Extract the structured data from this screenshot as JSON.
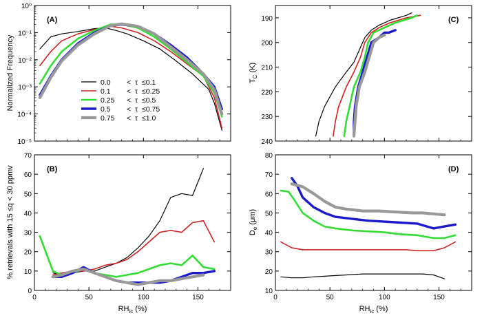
{
  "colors": {
    "series": [
      "#000000",
      "#cc2222",
      "#33dd33",
      "#1a1acc",
      "#999999"
    ],
    "frame": "#000000"
  },
  "legend": {
    "rows": [
      {
        "lo": "0.0",
        "op1": "<",
        "tau": "τ",
        "op2": "≤0.1"
      },
      {
        "lo": "0.1",
        "op1": "<",
        "tau": "τ",
        "op2": "≤0.25"
      },
      {
        "lo": "0.25",
        "op1": "<",
        "tau": "τ",
        "op2": "≤0.5"
      },
      {
        "lo": "0.5",
        "op1": "<",
        "tau": "τ",
        "op2": "≤0.75"
      },
      {
        "lo": "0.75",
        "op1": "<",
        "tau": "τ",
        "op2": "≤1.0"
      }
    ]
  },
  "chart_data": [
    {
      "id": "A",
      "type": "line",
      "panel_label": "(A)",
      "xlabel": "",
      "ylabel": "Normalized Frequency",
      "xlim": [
        0,
        180
      ],
      "ylim": [
        1e-05,
        1
      ],
      "yscale": "log",
      "xticks": [
        0,
        50,
        100,
        150
      ],
      "xtick_labels_shown": false,
      "ytick_labels": [
        "10⁰",
        "10⁻¹",
        "10⁻²",
        "10⁻³",
        "10⁻⁴",
        "10⁻⁵"
      ],
      "ytick_values": [
        1,
        0.1,
        0.01,
        0.001,
        0.0001,
        1e-05
      ],
      "series": [
        {
          "x": [
            5,
            15,
            25,
            40,
            55,
            65,
            75,
            85,
            100,
            115,
            130,
            145,
            160,
            165,
            172
          ],
          "y": [
            0.025,
            0.07,
            0.09,
            0.11,
            0.14,
            0.15,
            0.12,
            0.09,
            0.05,
            0.025,
            0.009,
            0.003,
            0.0008,
            0.00025,
            2.5e-05
          ]
        },
        {
          "x": [
            5,
            15,
            25,
            40,
            55,
            70,
            80,
            95,
            110,
            125,
            140,
            155,
            165,
            172
          ],
          "y": [
            0.006,
            0.02,
            0.05,
            0.09,
            0.13,
            0.17,
            0.15,
            0.1,
            0.05,
            0.02,
            0.007,
            0.0025,
            0.0004,
            3e-05
          ]
        },
        {
          "x": [
            5,
            15,
            25,
            40,
            55,
            70,
            80,
            95,
            110,
            125,
            140,
            155,
            165,
            172
          ],
          "y": [
            0.0013,
            0.006,
            0.02,
            0.06,
            0.12,
            0.2,
            0.2,
            0.15,
            0.07,
            0.025,
            0.008,
            0.0025,
            0.0006,
            8e-05
          ]
        },
        {
          "x": [
            5,
            15,
            25,
            40,
            55,
            70,
            80,
            95,
            110,
            125,
            140,
            155,
            165,
            172
          ],
          "y": [
            0.0005,
            0.0025,
            0.01,
            0.04,
            0.1,
            0.18,
            0.2,
            0.17,
            0.09,
            0.035,
            0.012,
            0.003,
            0.001,
            0.00015
          ]
        },
        {
          "x": [
            5,
            15,
            25,
            40,
            55,
            70,
            80,
            95,
            110,
            125,
            140,
            155,
            165,
            172
          ],
          "y": [
            0.0004,
            0.0022,
            0.009,
            0.035,
            0.09,
            0.18,
            0.21,
            0.17,
            0.09,
            0.03,
            0.01,
            0.003,
            0.0008,
            0.0001
          ]
        }
      ]
    },
    {
      "id": "B",
      "type": "line",
      "panel_label": "(B)",
      "xlabel": "RH",
      "xlabel_sub": "ic",
      "xlabel_tail": " (%)",
      "ylabel": "% retrievals with 15 ≤q < 30 ppmv",
      "xlim": [
        0,
        180
      ],
      "ylim": [
        0,
        70
      ],
      "xticks": [
        0,
        50,
        100,
        150
      ],
      "yticks": [
        0,
        10,
        20,
        30,
        40,
        50,
        60,
        70
      ],
      "series": [
        {
          "x": [
            17,
            25,
            35,
            45,
            55,
            65,
            75,
            85,
            95,
            105,
            115,
            125,
            135,
            145,
            155
          ],
          "y": [
            9,
            8,
            9,
            10,
            10,
            12,
            14,
            17,
            22,
            28,
            36,
            48,
            50,
            49,
            63
          ]
        },
        {
          "x": [
            17,
            25,
            35,
            45,
            55,
            65,
            75,
            85,
            95,
            105,
            115,
            125,
            135,
            145,
            155,
            165
          ],
          "y": [
            8,
            9,
            10,
            10,
            11,
            13,
            14,
            16,
            20,
            25,
            30,
            31,
            30,
            35,
            36,
            25
          ]
        },
        {
          "x": [
            5,
            17,
            25,
            35,
            45,
            55,
            65,
            75,
            85,
            95,
            105,
            115,
            125,
            135,
            145,
            155,
            165
          ],
          "y": [
            28,
            10,
            8,
            9,
            11,
            9,
            8,
            7,
            8,
            9,
            11,
            13,
            14,
            13,
            18,
            12,
            11
          ]
        },
        {
          "x": [
            17,
            25,
            35,
            45,
            55,
            65,
            75,
            85,
            95,
            105,
            115,
            125,
            135,
            145,
            155,
            165
          ],
          "y": [
            7,
            7,
            9,
            12,
            9,
            7,
            5,
            4,
            4,
            4,
            4,
            5,
            7,
            9,
            9,
            10
          ]
        },
        {
          "x": [
            17,
            25,
            35,
            45,
            55,
            65,
            75,
            85,
            95,
            105,
            115,
            125,
            135,
            145,
            155
          ],
          "y": [
            7,
            8,
            10,
            11,
            9,
            7,
            5,
            4,
            3,
            4,
            5,
            5,
            6,
            7,
            8
          ]
        }
      ]
    },
    {
      "id": "C",
      "type": "line",
      "panel_label": "(C)",
      "xlabel": "",
      "ylabel": "T",
      "ylabel_sub": "C",
      "ylabel_tail": " (K)",
      "xlim": [
        0,
        180
      ],
      "ylim": [
        240,
        185
      ],
      "xticks": [
        0,
        50,
        100,
        150
      ],
      "xtick_labels_shown": false,
      "yticks": [
        190,
        200,
        210,
        220,
        230,
        240
      ],
      "series": [
        {
          "x": [
            37,
            40,
            45,
            55,
            65,
            72,
            78,
            82,
            88,
            95,
            105,
            120,
            125
          ],
          "y": [
            238,
            232,
            226,
            218,
            212,
            208,
            202,
            198,
            195,
            193,
            191,
            189,
            188
          ]
        },
        {
          "x": [
            53,
            55,
            58,
            65,
            72,
            78,
            82,
            88,
            95,
            105,
            120,
            133
          ],
          "y": [
            238,
            232,
            226,
            218,
            212,
            206,
            200,
            196,
            194,
            192,
            190,
            189
          ]
        },
        {
          "x": [
            63,
            65,
            68,
            72,
            78,
            82,
            85,
            90,
            100,
            110,
            125,
            130
          ],
          "y": [
            238,
            232,
            226,
            218,
            212,
            206,
            200,
            196,
            194,
            192,
            190,
            189
          ]
        },
        {
          "x": [
            72,
            72,
            73,
            76,
            80,
            84,
            88,
            95,
            100,
            104,
            110
          ],
          "y": [
            238,
            232,
            226,
            218,
            212,
            206,
            200,
            198,
            196,
            196,
            195
          ]
        },
        {
          "x": [
            72,
            73,
            74,
            77,
            82,
            86,
            90,
            95,
            100
          ],
          "y": [
            238,
            232,
            226,
            218,
            212,
            206,
            200,
            198,
            197
          ]
        }
      ]
    },
    {
      "id": "D",
      "type": "line",
      "panel_label": "(D)",
      "xlabel": "RH",
      "xlabel_sub": "ic",
      "xlabel_tail": " (%)",
      "ylabel": "D",
      "ylabel_sub": "e",
      "ylabel_tail": " (μm)",
      "xlim": [
        0,
        180
      ],
      "ylim": [
        10,
        80
      ],
      "xticks": [
        0,
        50,
        100,
        150
      ],
      "yticks": [
        10,
        20,
        30,
        40,
        50,
        60,
        70,
        80
      ],
      "series": [
        {
          "x": [
            5,
            15,
            25,
            35,
            50,
            65,
            80,
            95,
            110,
            125,
            135,
            145,
            155
          ],
          "y": [
            17,
            16.5,
            16.5,
            17,
            17.5,
            18,
            18.5,
            18.5,
            18.5,
            18.5,
            18.5,
            18,
            16
          ]
        },
        {
          "x": [
            5,
            15,
            25,
            35,
            50,
            65,
            80,
            95,
            110,
            120,
            130,
            145,
            155,
            165
          ],
          "y": [
            35,
            32,
            31,
            31,
            31,
            31,
            31,
            31,
            31,
            31,
            30.5,
            30.5,
            32,
            35
          ]
        },
        {
          "x": [
            5,
            12,
            17,
            25,
            35,
            45,
            55,
            70,
            85,
            100,
            115,
            130,
            145,
            155,
            165
          ],
          "y": [
            61.5,
            61,
            57,
            50,
            46,
            43,
            42,
            41,
            40.5,
            40,
            39,
            38.5,
            37,
            37,
            38.5
          ]
        },
        {
          "x": [
            15,
            20,
            25,
            35,
            45,
            55,
            70,
            85,
            100,
            115,
            130,
            145,
            155,
            165
          ],
          "y": [
            68,
            64,
            58,
            53,
            50,
            48,
            47,
            46,
            45.5,
            45,
            44.5,
            42,
            43,
            44
          ]
        },
        {
          "x": [
            15,
            25,
            35,
            45,
            55,
            65,
            80,
            95,
            110,
            125,
            135,
            145,
            155
          ],
          "y": [
            65,
            63.5,
            60,
            56,
            53,
            52,
            51,
            51,
            50.5,
            50,
            50,
            49.5,
            49
          ]
        }
      ]
    }
  ]
}
